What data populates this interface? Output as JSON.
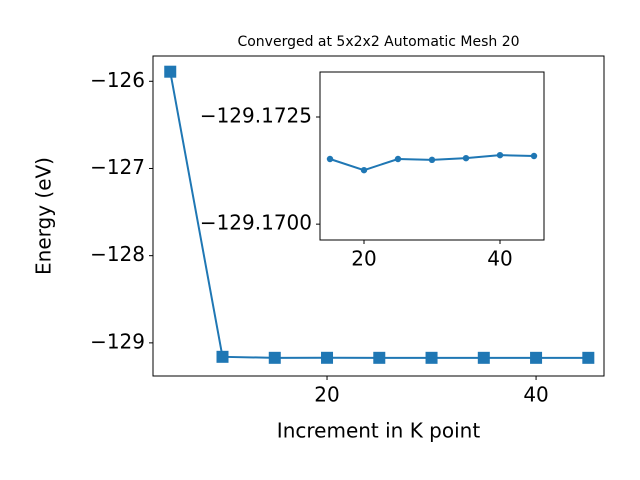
{
  "chart_data": [
    {
      "type": "line",
      "title": "Converged at 5x2x2 Automatic Mesh 20",
      "x_label": "Increment in K point",
      "y_label": "Energy (eV)",
      "x": [
        5,
        10,
        15,
        20,
        25,
        30,
        35,
        40,
        45
      ],
      "series": [
        {
          "color": "#1f77b4",
          "marker": "square",
          "values": [
            -125.89,
            -129.16,
            -129.17152,
            -129.17126,
            -129.17152,
            -129.1715,
            -129.17154,
            -129.17161,
            -129.17159
          ]
        }
      ],
      "xlim": [
        3.35,
        46.5
      ],
      "ylim": [
        -129.38,
        -125.71
      ],
      "xticks": [
        20,
        40
      ],
      "yticks": [
        {
          "value": -129,
          "label": "−129"
        },
        {
          "value": -128,
          "label": "−128"
        },
        {
          "value": -127,
          "label": "−127"
        },
        {
          "value": -126,
          "label": "−126"
        }
      ]
    },
    {
      "type": "line",
      "x": [
        15,
        20,
        25,
        30,
        35,
        40,
        45
      ],
      "series": [
        {
          "color": "#1f77b4",
          "marker": "circle",
          "values": [
            -129.17152,
            -129.17126,
            -129.17152,
            -129.1715,
            -129.17154,
            -129.17161,
            -129.17159
          ]
        }
      ],
      "xlim": [
        13.53,
        46.47
      ],
      "ylim": [
        -129.16963,
        -129.17355
      ],
      "xticks": [
        20,
        40
      ],
      "yticks": [
        {
          "value": -129.17,
          "label": "−129.1700"
        },
        {
          "value": -129.1725,
          "label": "−129.1725"
        }
      ]
    }
  ]
}
